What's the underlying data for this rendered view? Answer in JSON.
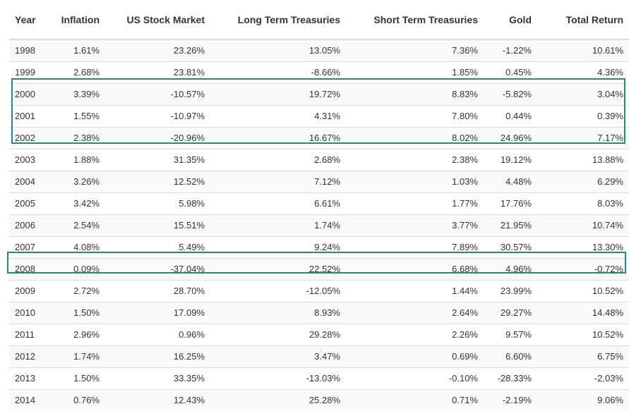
{
  "columns": [
    "Year",
    "Inflation",
    "US Stock Market",
    "Long Term Treasuries",
    "Short Term Treasuries",
    "Gold",
    "Total Return"
  ],
  "rows": [
    [
      "1998",
      "1.61%",
      "23.26%",
      "13.05%",
      "7.36%",
      "-1.22%",
      "10.61%"
    ],
    [
      "1999",
      "2.68%",
      "23.81%",
      "-8.66%",
      "1.85%",
      "0.45%",
      "4.36%"
    ],
    [
      "2000",
      "3.39%",
      "-10.57%",
      "19.72%",
      "8.83%",
      "-5.82%",
      "3.04%"
    ],
    [
      "2001",
      "1.55%",
      "-10.97%",
      "4.31%",
      "7.80%",
      "0.44%",
      "0.39%"
    ],
    [
      "2002",
      "2.38%",
      "-20.96%",
      "16.67%",
      "8.02%",
      "24.96%",
      "7.17%"
    ],
    [
      "2003",
      "1.88%",
      "31.35%",
      "2.68%",
      "2.38%",
      "19.12%",
      "13.88%"
    ],
    [
      "2004",
      "3.26%",
      "12.52%",
      "7.12%",
      "1.03%",
      "4.48%",
      "6.29%"
    ],
    [
      "2005",
      "3.42%",
      "5.98%",
      "6.61%",
      "1.77%",
      "17.76%",
      "8.03%"
    ],
    [
      "2006",
      "2.54%",
      "15.51%",
      "1.74%",
      "3.77%",
      "21.95%",
      "10.74%"
    ],
    [
      "2007",
      "4.08%",
      "5.49%",
      "9.24%",
      "7.89%",
      "30.57%",
      "13.30%"
    ],
    [
      "2008",
      "0.09%",
      "-37.04%",
      "22.52%",
      "6.68%",
      "4.96%",
      "-0.72%"
    ],
    [
      "2009",
      "2.72%",
      "28.70%",
      "-12.05%",
      "1.44%",
      "23.99%",
      "10.52%"
    ],
    [
      "2010",
      "1.50%",
      "17.09%",
      "8.93%",
      "2.64%",
      "29.27%",
      "14.48%"
    ],
    [
      "2011",
      "2.96%",
      "0.96%",
      "29.28%",
      "2.26%",
      "9.57%",
      "10.52%"
    ],
    [
      "2012",
      "1.74%",
      "16.25%",
      "3.47%",
      "0.69%",
      "6.60%",
      "6.75%"
    ],
    [
      "2013",
      "1.50%",
      "33.35%",
      "-13.03%",
      "-0.10%",
      "-28.33%",
      "-2.03%"
    ],
    [
      "2014",
      "0.76%",
      "12.43%",
      "25.28%",
      "0.71%",
      "-2.19%",
      "9.06%"
    ]
  ],
  "colors": {
    "highlight": "#1f8a80",
    "stripe": "#f9f9f9",
    "border": "#dddddd",
    "text": "#333333"
  }
}
